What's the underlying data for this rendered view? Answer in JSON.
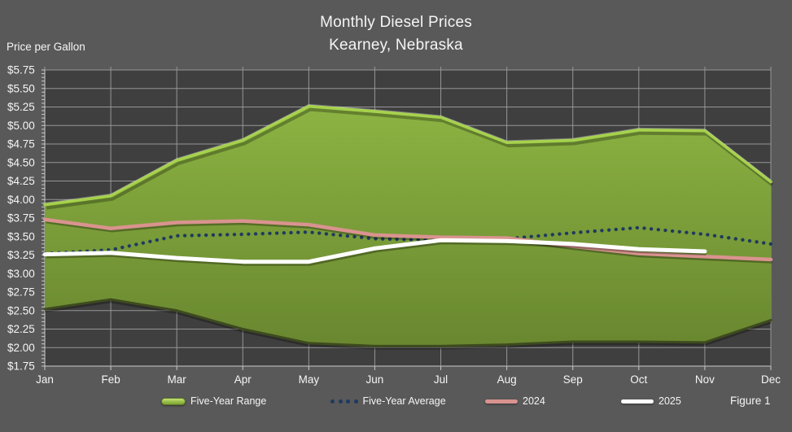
{
  "title": {
    "line1": "Monthly Diesel Prices",
    "line2": "Kearney, Nebraska"
  },
  "y_axis": {
    "label": "Price per Gallon",
    "tick_labels": [
      "$5.75",
      "$5.50",
      "$5.25",
      "$5.00",
      "$4.75",
      "$4.50",
      "$4.25",
      "$4.00",
      "$3.75",
      "$3.50",
      "$3.25",
      "$3.00",
      "$2.75",
      "$2.50",
      "$2.25",
      "$2.00",
      "$1.75"
    ]
  },
  "figure_caption": "Figure 1",
  "legend": {
    "items": [
      {
        "label": "Five-Year Range",
        "marker": "range-swatch"
      },
      {
        "label": "Five-Year Average",
        "marker": "dotted-swatch"
      },
      {
        "label": "2024",
        "marker": "pink-line-swatch"
      },
      {
        "label": "2025",
        "marker": "white-line-swatch"
      }
    ]
  },
  "colors": {
    "outer_bg": "#595959",
    "plot_bg": "#3f3f3f",
    "gridline": "#969696",
    "axis_line": "#c9c9c9",
    "text": "#f5f5f5",
    "range_edge": "#a6d14c",
    "range_fill_top": "#91ba45",
    "range_fill_bottom": "#66832e",
    "range_bottom_edge": "#3e4b1e",
    "five_year_average": "#1f3a5f",
    "y2024": "#d9938f",
    "y2025": "#ffffff"
  },
  "chart_data": {
    "type": "area",
    "title": "Monthly Diesel Prices",
    "subtitle": "Kearney, Nebraska",
    "categories": [
      "Jan",
      "Feb",
      "Mar",
      "Apr",
      "May",
      "Jun",
      "Jul",
      "Aug",
      "Sep",
      "Oct",
      "Nov",
      "Dec"
    ],
    "series": [
      {
        "name": "Five-Year Range",
        "type": "range-area",
        "high": [
          3.93,
          4.05,
          4.53,
          4.8,
          5.26,
          5.19,
          5.11,
          4.77,
          4.8,
          4.94,
          4.93,
          4.24
        ],
        "low": [
          2.52,
          2.65,
          2.5,
          2.25,
          2.06,
          2.02,
          2.02,
          2.04,
          2.08,
          2.08,
          2.07,
          2.37
        ]
      },
      {
        "name": "Five-Year Average",
        "type": "dotted-line",
        "values": [
          3.27,
          3.32,
          3.51,
          3.53,
          3.56,
          3.47,
          3.45,
          3.47,
          3.55,
          3.62,
          3.53,
          3.4
        ]
      },
      {
        "name": "2024",
        "type": "line",
        "values": [
          3.73,
          3.61,
          3.69,
          3.71,
          3.66,
          3.52,
          3.49,
          3.48,
          3.37,
          3.27,
          3.23,
          3.19
        ]
      },
      {
        "name": "2025",
        "type": "line",
        "values": [
          3.26,
          3.28,
          3.21,
          3.16,
          3.16,
          3.34,
          3.45,
          3.44,
          3.4,
          3.33,
          3.3
        ]
      }
    ],
    "xlabel": "",
    "ylabel": "Price per Gallon",
    "ylim": [
      1.75,
      5.75
    ],
    "ytick_step": 0.25,
    "grid": true,
    "legend_position": "bottom"
  }
}
